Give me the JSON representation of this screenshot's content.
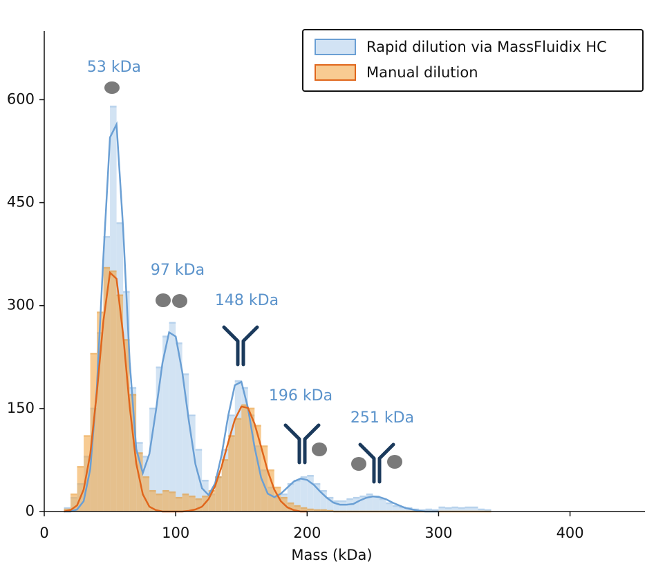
{
  "chart_data": {
    "type": "histogram",
    "xlabel": "Mass (kDa)",
    "xlim": [
      0,
      457
    ],
    "ylim": [
      0,
      700
    ],
    "xticks": [
      0,
      100,
      200,
      300,
      400
    ],
    "yticks": [
      0,
      150,
      300,
      450,
      600
    ],
    "bins": [
      15,
      20,
      25,
      30,
      35,
      40,
      45,
      50,
      55,
      60,
      65,
      70,
      75,
      80,
      85,
      90,
      95,
      100,
      105,
      110,
      115,
      120,
      125,
      130,
      135,
      140,
      145,
      150,
      155,
      160,
      165,
      170,
      175,
      180,
      185,
      190,
      195,
      200,
      205,
      210,
      215,
      220,
      225,
      230,
      235,
      240,
      245,
      250,
      255,
      260,
      265,
      270,
      275,
      280,
      285,
      290,
      295,
      300,
      305,
      310,
      315,
      320,
      325,
      330,
      335,
      340
    ],
    "legend": "upper right",
    "series": [
      {
        "name": "Rapid dilution via MassFluidix HC",
        "color": "#c3daf0",
        "edgecolor": "#9fc3e6",
        "values": [
          5,
          20,
          40,
          80,
          150,
          260,
          400,
          590,
          420,
          320,
          180,
          100,
          80,
          150,
          210,
          255,
          275,
          245,
          200,
          140,
          90,
          45,
          25,
          50,
          90,
          140,
          190,
          180,
          140,
          95,
          60,
          35,
          20,
          25,
          40,
          45,
          50,
          52,
          40,
          30,
          20,
          15,
          15,
          18,
          20,
          22,
          25,
          22,
          18,
          12,
          8,
          6,
          5,
          3,
          2,
          3,
          2,
          6,
          5,
          6,
          5,
          6,
          6,
          3,
          2
        ]
      },
      {
        "name": "Manual dilution",
        "color": "#f3a94a",
        "edgecolor": "#e8901f",
        "values": [
          3,
          25,
          65,
          110,
          230,
          290,
          355,
          350,
          315,
          250,
          170,
          85,
          50,
          30,
          25,
          30,
          28,
          20,
          25,
          22,
          18,
          22,
          30,
          50,
          75,
          110,
          135,
          155,
          150,
          125,
          95,
          60,
          35,
          20,
          12,
          8,
          5,
          3,
          2,
          2,
          1,
          0,
          0,
          0,
          0,
          0,
          0,
          0,
          0,
          0,
          0,
          0,
          0,
          0,
          0,
          0,
          0,
          0,
          0,
          0,
          0,
          0,
          0,
          0,
          0
        ]
      }
    ],
    "fits": [
      {
        "color": "#6a9fd4",
        "x": [
          15,
          20,
          25,
          30,
          35,
          40,
          45,
          50,
          55,
          60,
          65,
          70,
          75,
          80,
          85,
          90,
          95,
          100,
          105,
          110,
          115,
          120,
          125,
          130,
          135,
          140,
          145,
          150,
          155,
          160,
          165,
          170,
          175,
          180,
          185,
          190,
          195,
          200,
          205,
          210,
          215,
          220,
          225,
          230,
          235,
          240,
          245,
          250,
          255,
          260,
          265,
          270,
          275,
          280,
          285,
          290,
          295,
          300
        ],
        "values": [
          0,
          0,
          3,
          15,
          62,
          180,
          372,
          545,
          564,
          413,
          218,
          91,
          56,
          84,
          147,
          217,
          261,
          255,
          203,
          132,
          69,
          34,
          24,
          41,
          83,
          140,
          184,
          189,
          151,
          94,
          49,
          26,
          21,
          26,
          35,
          44,
          48,
          46,
          39,
          29,
          20,
          13,
          10,
          10,
          11,
          16,
          20,
          22,
          21,
          18,
          13,
          9,
          5,
          3,
          1,
          0,
          0,
          0
        ]
      },
      {
        "color": "#e0661c",
        "x": [
          15,
          20,
          25,
          30,
          35,
          40,
          45,
          50,
          55,
          60,
          65,
          70,
          75,
          80,
          85,
          90,
          95,
          100,
          105,
          110,
          115,
          120,
          125,
          130,
          135,
          140,
          145,
          150,
          155,
          160,
          165,
          170,
          175,
          180,
          185,
          190,
          195,
          200
        ],
        "values": [
          0,
          2,
          9,
          32,
          84,
          173,
          278,
          348,
          339,
          258,
          153,
          70,
          25,
          7,
          2,
          0,
          0,
          0,
          0,
          1,
          3,
          7,
          18,
          37,
          66,
          101,
          134,
          153,
          151,
          128,
          94,
          59,
          32,
          15,
          6,
          2,
          0,
          0
        ]
      }
    ],
    "annotations": [
      "53 kDa",
      "97 kDa",
      "148 kDa",
      "196 kDa",
      "251 kDa"
    ]
  }
}
